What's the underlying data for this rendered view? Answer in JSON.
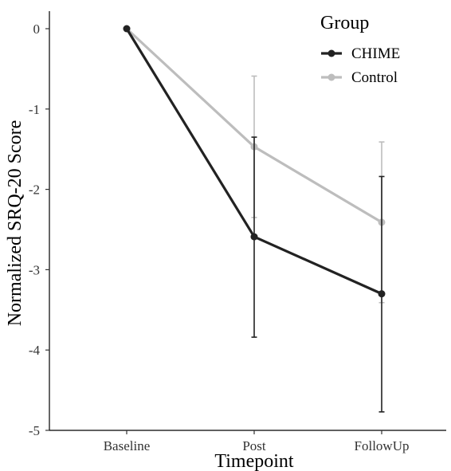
{
  "chart_data": {
    "type": "line",
    "title": "",
    "xlabel": "Timepoint",
    "ylabel": "Normalized SRQ-20 Score",
    "categories": [
      "Baseline",
      "Post",
      "FollowUp"
    ],
    "ylim": [
      -5,
      0
    ],
    "yticks": [
      0,
      -1,
      -2,
      -3,
      -4,
      -5
    ],
    "ytick_labels": [
      "0",
      "-1",
      "-2",
      "-3",
      "-4",
      "-5"
    ],
    "grid": false,
    "legend": {
      "title": "Group",
      "placement": "top-right"
    },
    "series": [
      {
        "name": "CHIME",
        "color": "#222222",
        "values": [
          0,
          -2.59,
          -3.3
        ],
        "error_low": [
          0,
          -3.84,
          -4.77
        ],
        "error_high": [
          0,
          -1.35,
          -1.84
        ]
      },
      {
        "name": "Control",
        "color": "#bdbdbd",
        "values": [
          0,
          -1.47,
          -2.41
        ],
        "error_low": [
          0,
          -2.35,
          -3.41
        ],
        "error_high": [
          0,
          -0.59,
          -1.41
        ]
      }
    ]
  }
}
